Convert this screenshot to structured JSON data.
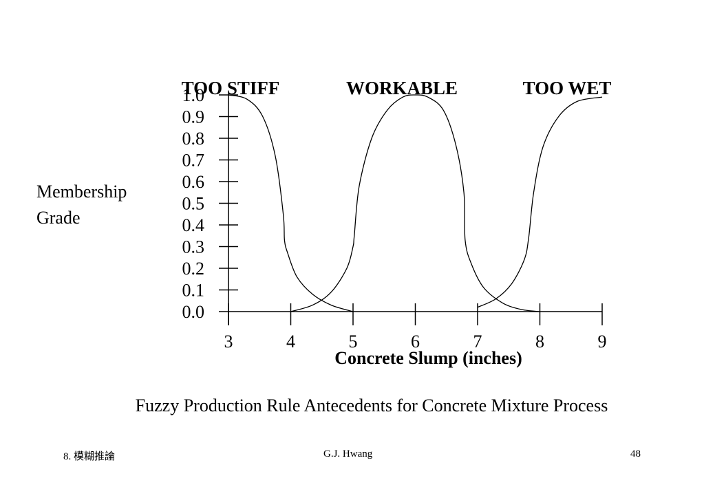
{
  "chart_data": {
    "type": "line",
    "xlabel": "Concrete Slump (inches)",
    "ylabel_lines": [
      "Membership",
      "Grade"
    ],
    "xlim": [
      3,
      9
    ],
    "ylim": [
      0,
      1
    ],
    "xticks": [
      "3",
      "4",
      "5",
      "6",
      "7",
      "8",
      "9"
    ],
    "yticks": [
      "0.0",
      "0.1",
      "0.2",
      "0.3",
      "0.4",
      "0.5",
      "0.6",
      "0.7",
      "0.8",
      "0.9",
      "1.0"
    ],
    "series": [
      {
        "name": "TOO STIFF",
        "points": [
          [
            3.0,
            1.0
          ],
          [
            3.3,
            0.98
          ],
          [
            3.55,
            0.9
          ],
          [
            3.75,
            0.72
          ],
          [
            3.88,
            0.45
          ],
          [
            3.9,
            0.33
          ],
          [
            3.95,
            0.27
          ],
          [
            4.1,
            0.16
          ],
          [
            4.35,
            0.08
          ],
          [
            4.65,
            0.03
          ],
          [
            5.0,
            0.0
          ]
        ]
      },
      {
        "name": "WORKABLE",
        "points": [
          [
            4.0,
            0.0
          ],
          [
            4.35,
            0.03
          ],
          [
            4.65,
            0.09
          ],
          [
            4.9,
            0.2
          ],
          [
            5.0,
            0.3
          ],
          [
            5.02,
            0.35
          ],
          [
            5.1,
            0.58
          ],
          [
            5.3,
            0.8
          ],
          [
            5.55,
            0.93
          ],
          [
            5.8,
            0.99
          ],
          [
            6.0,
            1.0
          ],
          [
            6.2,
            0.99
          ],
          [
            6.45,
            0.93
          ],
          [
            6.65,
            0.77
          ],
          [
            6.78,
            0.55
          ],
          [
            6.8,
            0.33
          ],
          [
            6.9,
            0.22
          ],
          [
            7.1,
            0.11
          ],
          [
            7.4,
            0.04
          ],
          [
            7.7,
            0.01
          ],
          [
            8.0,
            0.0
          ]
        ]
      },
      {
        "name": "TOO WET",
        "points": [
          [
            7.0,
            0.02
          ],
          [
            7.3,
            0.06
          ],
          [
            7.55,
            0.13
          ],
          [
            7.75,
            0.24
          ],
          [
            7.82,
            0.34
          ],
          [
            7.9,
            0.55
          ],
          [
            8.05,
            0.76
          ],
          [
            8.3,
            0.9
          ],
          [
            8.6,
            0.97
          ],
          [
            9.0,
            0.99
          ]
        ]
      }
    ]
  },
  "caption": "Fuzzy Production Rule Antecedents for Concrete Mixture Process",
  "footer": {
    "left": "8. 模糊推論",
    "center": "G.J. Hwang",
    "right": "48"
  }
}
